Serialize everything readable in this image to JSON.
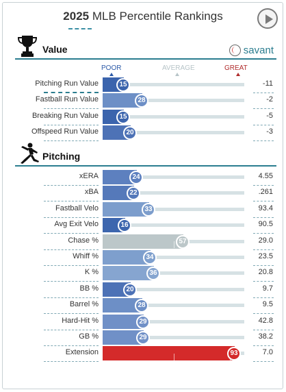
{
  "header": {
    "year": "2025",
    "title": "MLB Percentile Rankings"
  },
  "scale": {
    "poor": "POOR",
    "average": "AVERAGE",
    "great": "GREAT"
  },
  "brand": {
    "name": "savant"
  },
  "sections": [
    {
      "title": "Value",
      "icon": "trophy-icon",
      "rows": [
        {
          "label": "Pitching Run Value",
          "percentile": 15,
          "value": "-11",
          "color": "#3b64ad"
        },
        {
          "label": "Fastball Run Value",
          "percentile": 28,
          "value": "-2",
          "color": "#6d8fc6"
        },
        {
          "label": "Breaking Run Value",
          "percentile": 15,
          "value": "-5",
          "color": "#3b64ad"
        },
        {
          "label": "Offspeed Run Value",
          "percentile": 20,
          "value": "-3",
          "color": "#4d72b6"
        }
      ]
    },
    {
      "title": "Pitching",
      "icon": "pitcher-icon",
      "rows": [
        {
          "label": "xERA",
          "percentile": 24,
          "value": "4.55",
          "color": "#5d80bf"
        },
        {
          "label": "xBA",
          "percentile": 22,
          "value": ".261",
          "color": "#5579ba"
        },
        {
          "label": "Fastball Velo",
          "percentile": 33,
          "value": "93.4",
          "color": "#7c9dcc"
        },
        {
          "label": "Avg Exit Velo",
          "percentile": 16,
          "value": "90.5",
          "color": "#3d66ae"
        },
        {
          "label": "Chase %",
          "percentile": 57,
          "value": "29.0",
          "color": "#bcc7c9"
        },
        {
          "label": "Whiff %",
          "percentile": 34,
          "value": "23.5",
          "color": "#7e9fcd"
        },
        {
          "label": "K %",
          "percentile": 36,
          "value": "20.8",
          "color": "#86a5d0"
        },
        {
          "label": "BB %",
          "percentile": 20,
          "value": "9.7",
          "color": "#4d72b6"
        },
        {
          "label": "Barrel %",
          "percentile": 28,
          "value": "9.5",
          "color": "#6d8fc6"
        },
        {
          "label": "Hard-Hit %",
          "percentile": 29,
          "value": "42.8",
          "color": "#7090c7"
        },
        {
          "label": "GB %",
          "percentile": 29,
          "value": "38.2",
          "color": "#7090c7"
        },
        {
          "label": "Extension",
          "percentile": 93,
          "value": "7.0",
          "color": "#d42a2a"
        }
      ]
    }
  ]
}
